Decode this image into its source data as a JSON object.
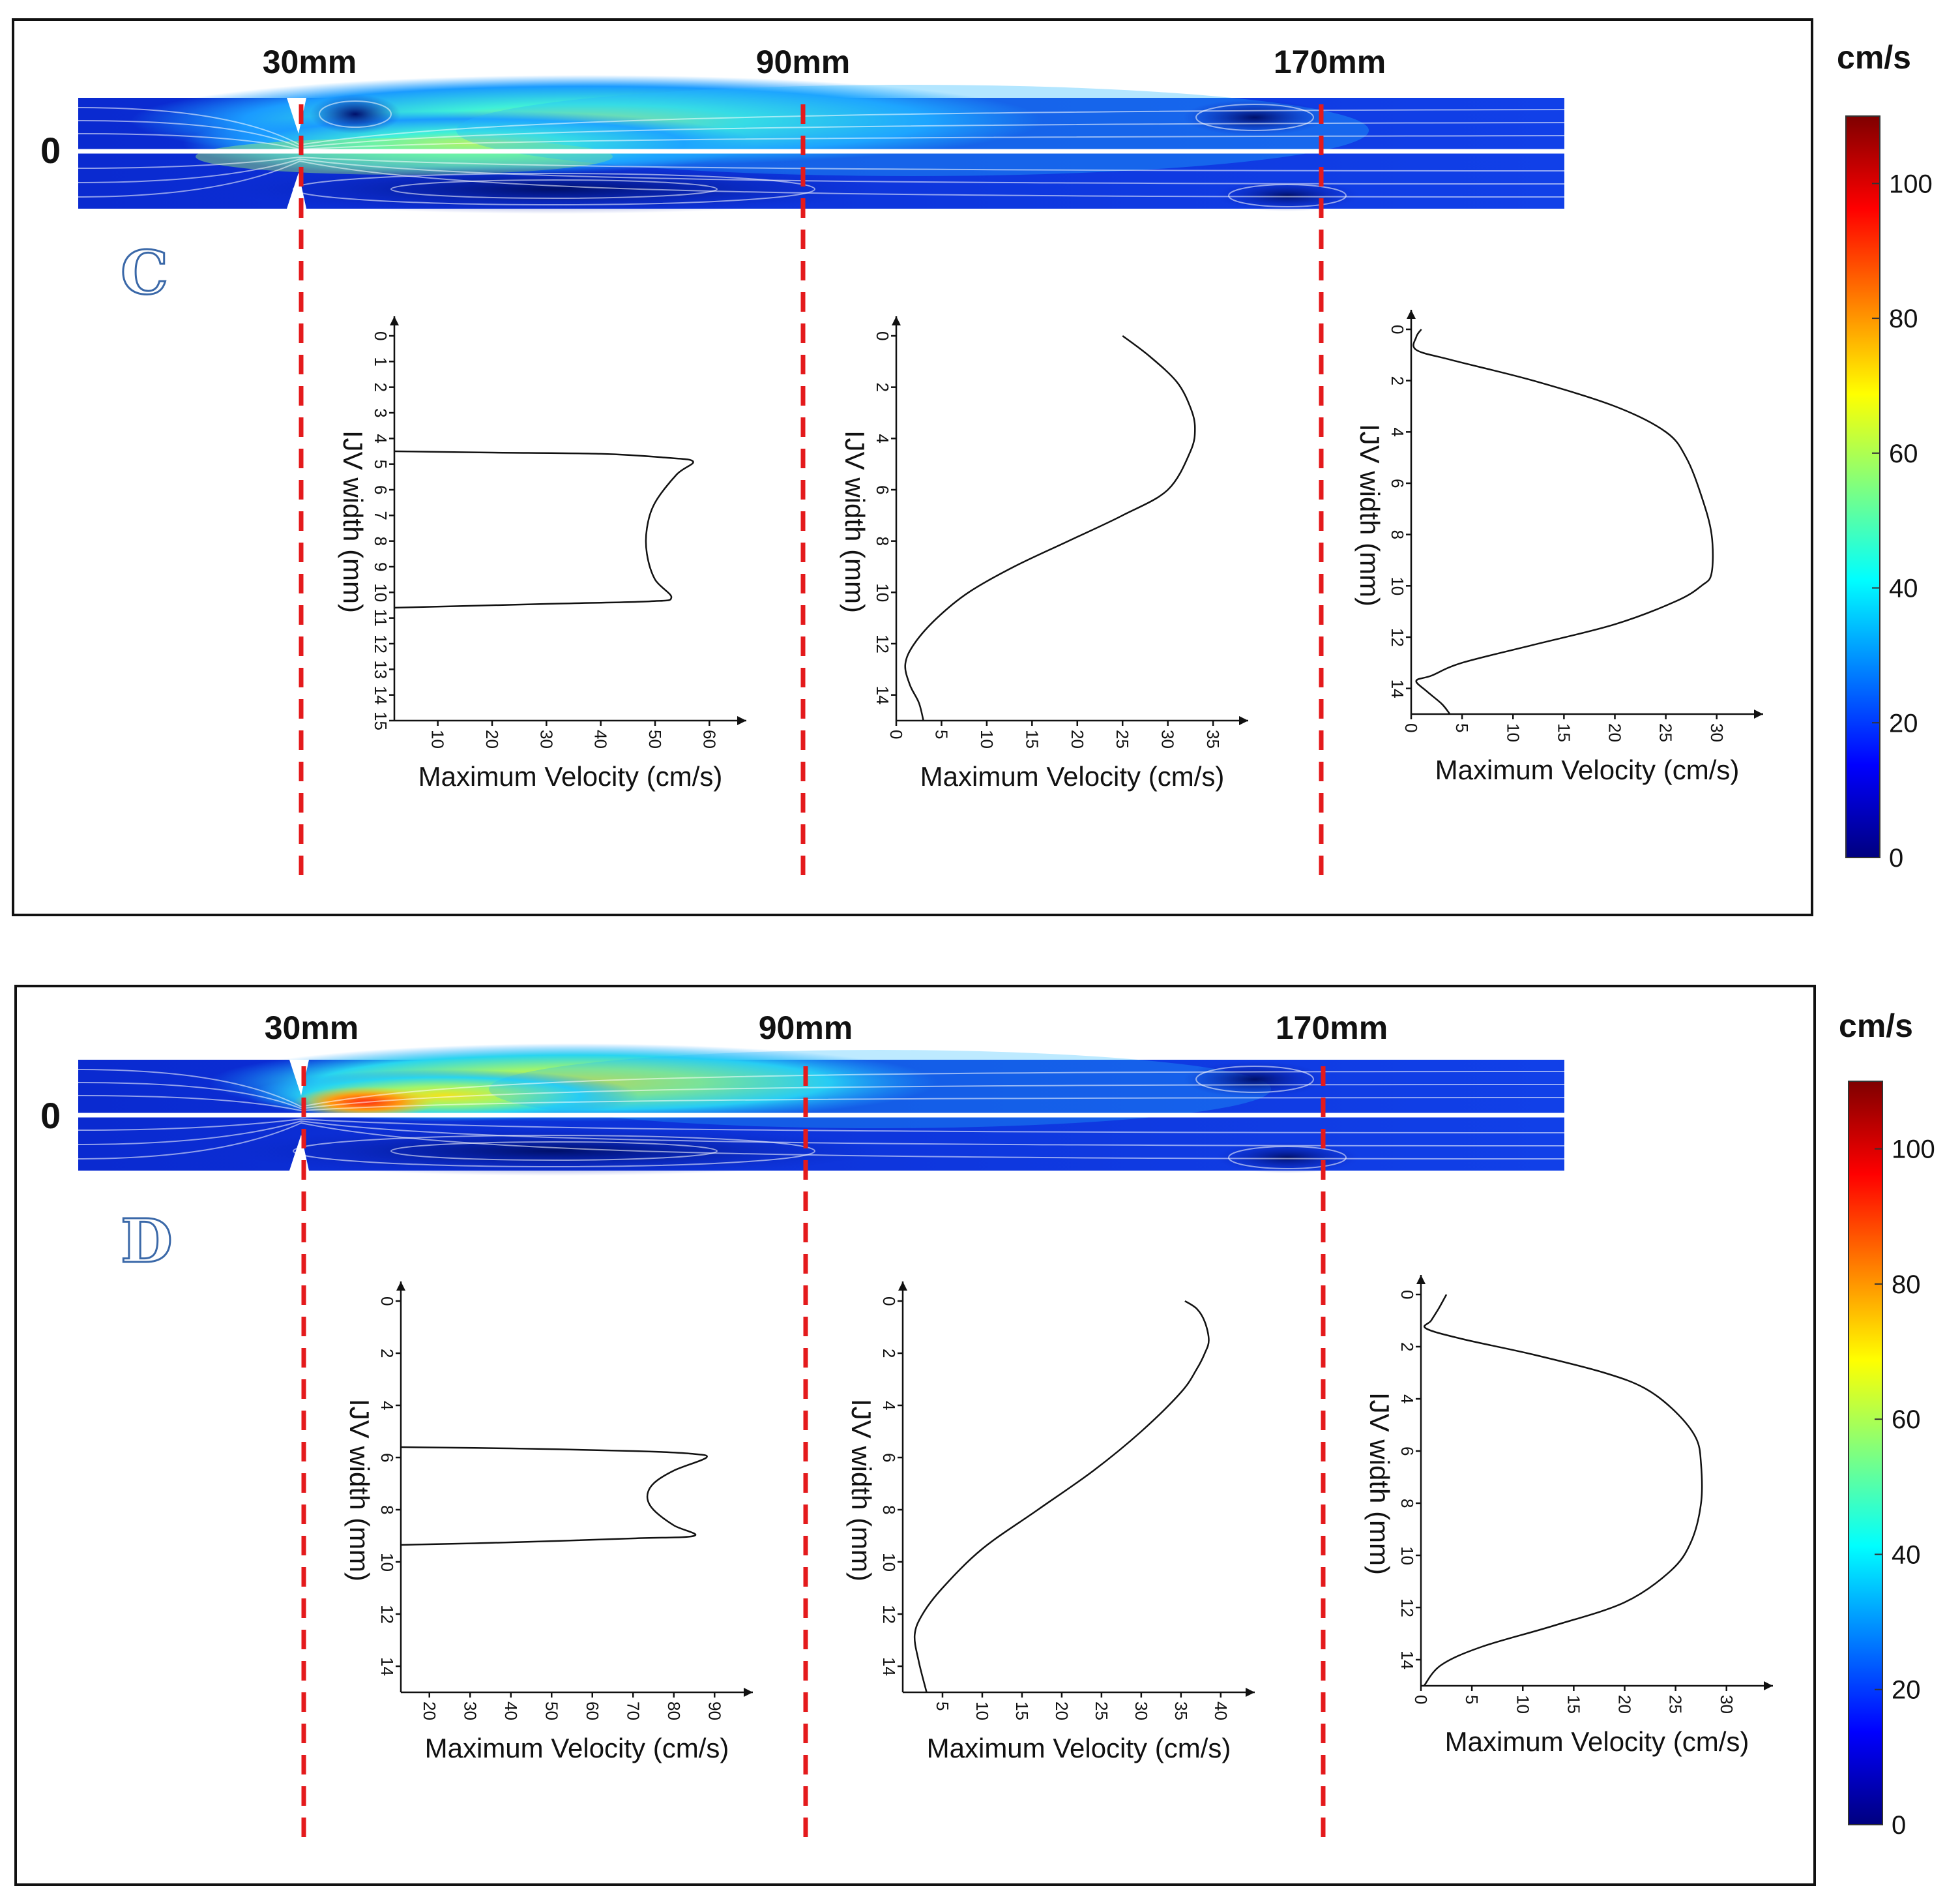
{
  "figure": {
    "panels": [
      {
        "letter": "C",
        "zero_label": "0",
        "positions": [
          "30mm",
          "90mm",
          "170mm"
        ],
        "colorbar": {
          "unit": "cm/s",
          "ticks": [
            "0",
            "20",
            "40",
            "60",
            "80",
            "100"
          ],
          "range": [
            0,
            110
          ]
        }
      },
      {
        "letter": "D",
        "zero_label": "0",
        "positions": [
          "30mm",
          "90mm",
          "170mm"
        ],
        "colorbar": {
          "unit": "cm/s",
          "ticks": [
            "0",
            "20",
            "40",
            "60",
            "80",
            "100"
          ],
          "range": [
            0,
            110
          ]
        }
      }
    ],
    "colormap": [
      "#00007f",
      "#0000ff",
      "#007fff",
      "#00ffff",
      "#7fff7f",
      "#ffff00",
      "#ff7f00",
      "#ff0000",
      "#7f0000"
    ],
    "section_line_color": "#e41a1c"
  },
  "chart_data": [
    {
      "panel": "C",
      "position": "30mm",
      "type": "line",
      "xlabel": "Maximum Velocity (cm/s)",
      "ylabel": "IJV width (mm)",
      "xlim": [
        2,
        62
      ],
      "ylim": [
        0,
        15
      ],
      "xticks": [
        10,
        20,
        30,
        40,
        50,
        60
      ],
      "yticks": [
        0,
        1,
        2,
        3,
        4,
        5,
        6,
        7,
        8,
        9,
        10,
        11,
        12,
        13,
        14,
        15
      ],
      "x": [
        2,
        20,
        40,
        52,
        57,
        54,
        50,
        48.5,
        48.5,
        50,
        53,
        49,
        30,
        2
      ],
      "y": [
        4.5,
        4.55,
        4.6,
        4.75,
        4.9,
        5.4,
        6.5,
        7.5,
        8.5,
        9.5,
        10.2,
        10.35,
        10.45,
        10.6
      ]
    },
    {
      "panel": "C",
      "position": "90mm",
      "type": "line",
      "xlabel": "Maximum Velocity (cm/s)",
      "ylabel": "IJV width (mm)",
      "xlim": [
        0,
        36
      ],
      "ylim": [
        0,
        15
      ],
      "xticks": [
        0,
        5,
        10,
        15,
        20,
        25,
        30,
        35
      ],
      "yticks": [
        0,
        2,
        4,
        6,
        8,
        10,
        12,
        14
      ],
      "x": [
        25,
        28,
        31,
        32.5,
        33,
        32.5,
        30,
        25,
        19,
        13,
        8,
        4.5,
        2,
        1,
        1.5,
        2.5,
        3
      ],
      "y": [
        0,
        0.8,
        1.8,
        2.8,
        3.6,
        4.5,
        6,
        7,
        8,
        9,
        10,
        11,
        12,
        12.8,
        13.6,
        14.3,
        15
      ]
    },
    {
      "panel": "C",
      "position": "170mm",
      "type": "line",
      "xlabel": "Maximum Velocity (cm/s)",
      "ylabel": "IJV width (mm)",
      "xlim": [
        0,
        32
      ],
      "ylim": [
        0,
        15
      ],
      "xticks": [
        0,
        5,
        10,
        15,
        20,
        25,
        30
      ],
      "yticks": [
        0,
        2,
        4,
        6,
        8,
        10,
        12,
        14
      ],
      "x": [
        1,
        0.5,
        0.5,
        4,
        12,
        20,
        25,
        27,
        28.5,
        29.5,
        29.5,
        28.5,
        26,
        20,
        12,
        5,
        2,
        0.5,
        1.5,
        3,
        3.8
      ],
      "y": [
        0,
        0.3,
        0.8,
        1.2,
        2,
        3,
        4,
        5,
        6.5,
        8,
        9.5,
        10,
        10.6,
        11.5,
        12.3,
        13,
        13.5,
        13.7,
        14.1,
        14.6,
        15
      ]
    },
    {
      "panel": "D",
      "position": "30mm",
      "type": "line",
      "xlabel": "Maximum Velocity (cm/s)",
      "ylabel": "IJV width (mm)",
      "xlim": [
        13,
        93
      ],
      "ylim": [
        0,
        15
      ],
      "xticks": [
        20,
        30,
        40,
        50,
        60,
        70,
        80,
        90
      ],
      "yticks": [
        0,
        2,
        4,
        6,
        8,
        10,
        12,
        14
      ],
      "x": [
        13,
        40,
        70,
        84,
        88,
        80,
        75,
        73.5,
        75,
        80,
        85,
        70,
        40,
        13
      ],
      "y": [
        5.6,
        5.65,
        5.75,
        5.85,
        6.0,
        6.5,
        7.0,
        7.5,
        8.0,
        8.6,
        9.0,
        9.1,
        9.25,
        9.35
      ]
    },
    {
      "panel": "D",
      "position": "90mm",
      "type": "line",
      "xlabel": "Maximum Velocity (cm/s)",
      "ylabel": "IJV width (mm)",
      "xlim": [
        0,
        41
      ],
      "ylim": [
        0,
        15
      ],
      "xticks": [
        5,
        10,
        15,
        20,
        25,
        30,
        35,
        40
      ],
      "yticks": [
        0,
        2,
        4,
        6,
        8,
        10,
        12,
        14
      ],
      "x": [
        35.5,
        37,
        38,
        38.5,
        38,
        37,
        35,
        30,
        24,
        17,
        10,
        5,
        2.5,
        1.5,
        2,
        3
      ],
      "y": [
        0,
        0.3,
        0.8,
        1.5,
        2,
        2.6,
        3.5,
        5,
        6.5,
        8,
        9.5,
        11,
        12,
        12.8,
        13.8,
        15
      ]
    },
    {
      "panel": "D",
      "position": "170mm",
      "type": "line",
      "xlabel": "Maximum Velocity (cm/s)",
      "ylabel": "IJV width (mm)",
      "xlim": [
        0,
        32
      ],
      "ylim": [
        0,
        15
      ],
      "xticks": [
        0,
        5,
        10,
        15,
        20,
        25,
        30
      ],
      "yticks": [
        0,
        2,
        4,
        6,
        8,
        10,
        12,
        14
      ],
      "x": [
        2.5,
        1.8,
        1,
        0.5,
        4,
        11,
        18,
        22,
        25,
        27,
        27.5,
        27.5,
        26.5,
        24.5,
        20,
        13,
        6,
        2,
        0.3
      ],
      "y": [
        0,
        0.5,
        1,
        1.3,
        1.7,
        2.3,
        3,
        3.6,
        4.5,
        5.5,
        6.5,
        8,
        9.5,
        10.6,
        11.8,
        12.7,
        13.5,
        14.2,
        15
      ]
    }
  ]
}
